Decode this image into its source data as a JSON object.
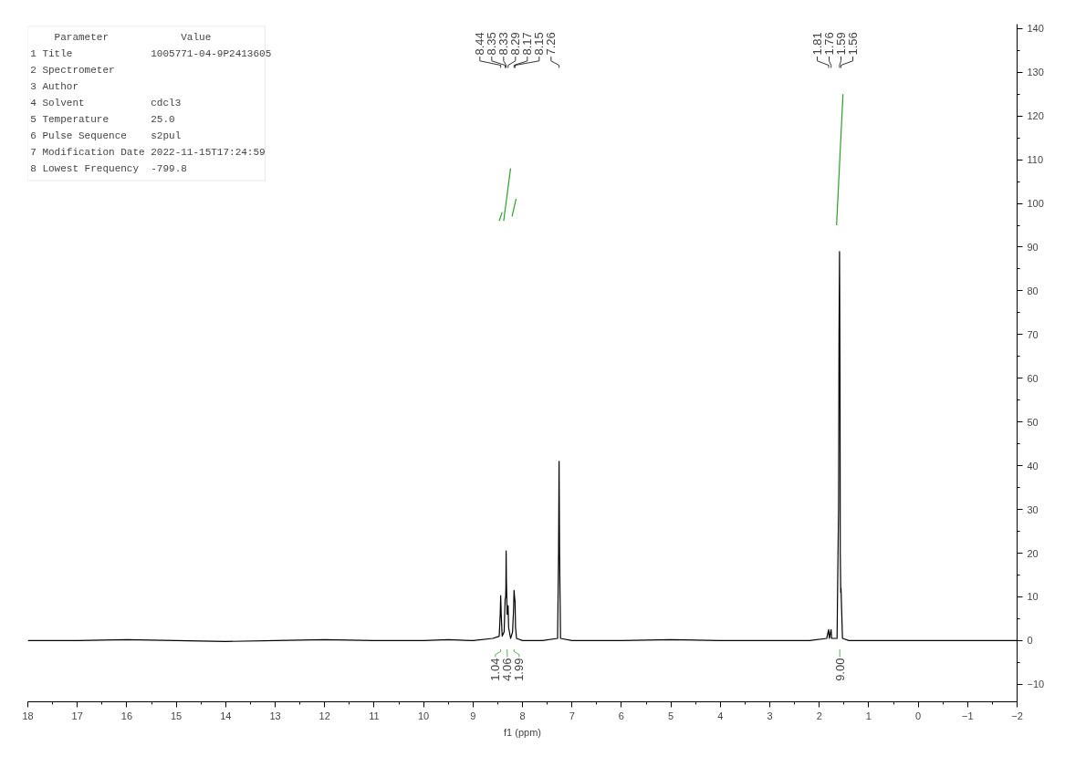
{
  "chart_data": {
    "type": "line",
    "xlabel": "f1 (ppm)",
    "xlim": [
      18,
      -2
    ],
    "ylim": [
      -14,
      141
    ],
    "xticks": [
      18,
      17,
      16,
      15,
      14,
      13,
      12,
      11,
      10,
      9,
      8,
      7,
      6,
      5,
      4,
      3,
      2,
      1,
      0,
      -1,
      -2
    ],
    "yticks": [
      -10,
      0,
      10,
      20,
      30,
      40,
      50,
      60,
      70,
      80,
      90,
      100,
      110,
      120,
      130,
      140
    ],
    "grid": false,
    "marker": "none",
    "line_style": "solid",
    "series": [
      {
        "color": "#000000",
        "x": [
          18,
          17,
          16,
          15,
          14,
          13,
          12,
          11,
          10,
          9.5,
          9,
          8.6,
          8.47,
          8.45,
          8.44,
          8.43,
          8.41,
          8.37,
          8.36,
          8.35,
          8.34,
          8.335,
          8.33,
          8.325,
          8.31,
          8.3,
          8.29,
          8.28,
          8.24,
          8.2,
          8.18,
          8.17,
          8.16,
          8.15,
          8.14,
          8.12,
          8.0,
          7.6,
          7.29,
          7.27,
          7.26,
          7.25,
          7.23,
          7.0,
          6,
          5,
          4,
          3,
          2.2,
          1.85,
          1.82,
          1.81,
          1.795,
          1.77,
          1.76,
          1.75,
          1.64,
          1.61,
          1.6,
          1.59,
          1.58,
          1.575,
          1.565,
          1.56,
          1.55,
          1.53,
          1.4,
          1,
          0,
          -1,
          -2
        ],
        "values": [
          0,
          0,
          0.2,
          0,
          -0.2,
          0,
          0.2,
          0,
          0,
          0.2,
          0,
          0.5,
          1,
          6,
          10.3,
          6,
          1,
          2,
          6,
          9.5,
          10,
          12,
          20.5,
          14,
          6,
          7,
          8,
          3,
          0.5,
          2,
          7,
          11.5,
          10,
          9,
          3,
          0.5,
          0,
          0,
          0.5,
          20,
          41,
          20,
          0.5,
          0,
          0,
          0.2,
          0,
          0,
          0,
          0.5,
          2,
          2.5,
          0.5,
          2,
          2.5,
          0.5,
          0.5,
          30,
          70,
          89,
          60,
          20,
          11,
          12,
          8,
          0.5,
          0,
          0,
          0,
          0,
          0
        ]
      },
      {
        "color": "#2ca02c",
        "x": [
          8.47,
          8.41
        ],
        "values": [
          96,
          98
        ]
      },
      {
        "color": "#2ca02c",
        "x": [
          8.38,
          8.24
        ],
        "values": [
          96,
          108
        ]
      },
      {
        "color": "#2ca02c",
        "x": [
          8.21,
          8.13
        ],
        "values": [
          97,
          101
        ]
      },
      {
        "color": "#2ca02c",
        "x": [
          1.65,
          1.52
        ],
        "values": [
          95,
          125
        ]
      }
    ],
    "annotations": [
      "8.44",
      "8.35",
      "8.33",
      "8.29",
      "8.17",
      "8.15",
      "7.26",
      "1.81",
      "1.76",
      "1.59",
      "1.56",
      "1.04",
      "4.06",
      "1.99",
      "9.00",
      "    Parameter            Value",
      "1 Title             1005771-04-9P2413605",
      "2 Spectrometer",
      "3 Author",
      "4 Solvent           cdcl3",
      "5 Temperature       25.0",
      "6 Pulse Sequence    s2pul",
      "7 Modification Date 2022-11-15T17:24:59",
      "8 Lowest Frequency  -799.8"
    ]
  }
}
